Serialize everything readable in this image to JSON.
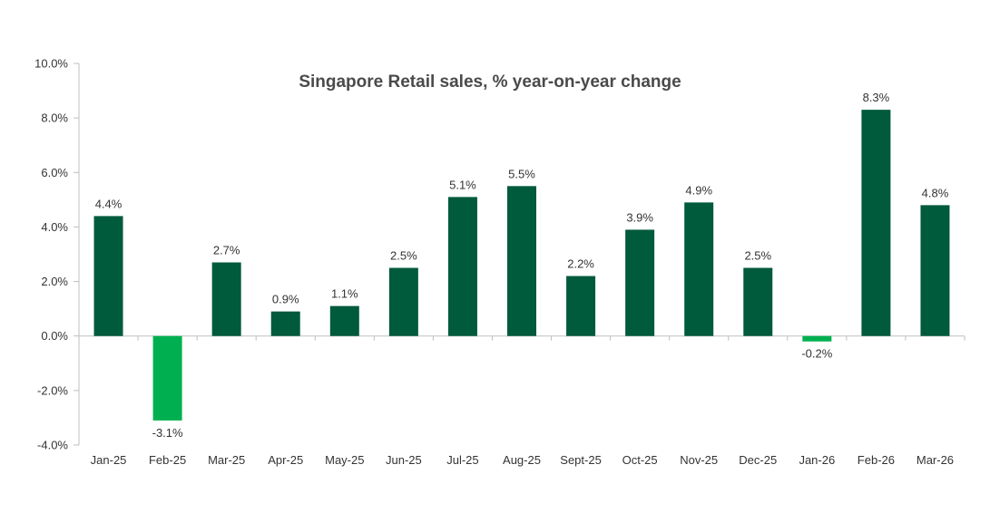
{
  "chart_data": {
    "type": "bar",
    "title": "Singapore Retail sales, % year-on-year change",
    "xlabel": "",
    "ylabel": "",
    "categories": [
      "Jan-25",
      "Feb-25",
      "Mar-25",
      "Apr-25",
      "May-25",
      "Jun-25",
      "Jul-25",
      "Aug-25",
      "Sept-25",
      "Oct-25",
      "Nov-25",
      "Dec-25",
      "Jan-26",
      "Feb-26",
      "Mar-26"
    ],
    "values": [
      4.4,
      -3.1,
      2.7,
      0.9,
      1.1,
      2.5,
      5.1,
      5.5,
      2.2,
      3.9,
      4.9,
      2.5,
      -0.2,
      8.3,
      4.8
    ],
    "data_labels": [
      "4.4%",
      "-3.1%",
      "2.7%",
      "0.9%",
      "1.1%",
      "2.5%",
      "5.1%",
      "5.5%",
      "2.2%",
      "3.9%",
      "4.9%",
      "2.5%",
      "-0.2%",
      "8.3%",
      "4.8%"
    ],
    "ylim": [
      -4,
      10
    ],
    "yticks": [
      10,
      8,
      6,
      4,
      2,
      0,
      -2,
      -4
    ],
    "ytick_labels": [
      "10.0%",
      "8.0%",
      "6.0%",
      "4.0%",
      "2.0%",
      "0.0%",
      "-2.0%",
      "-4.0%"
    ],
    "grid": false,
    "legend": "none",
    "colors": {
      "positive": "#005a3c",
      "negative": "#00b050"
    }
  }
}
